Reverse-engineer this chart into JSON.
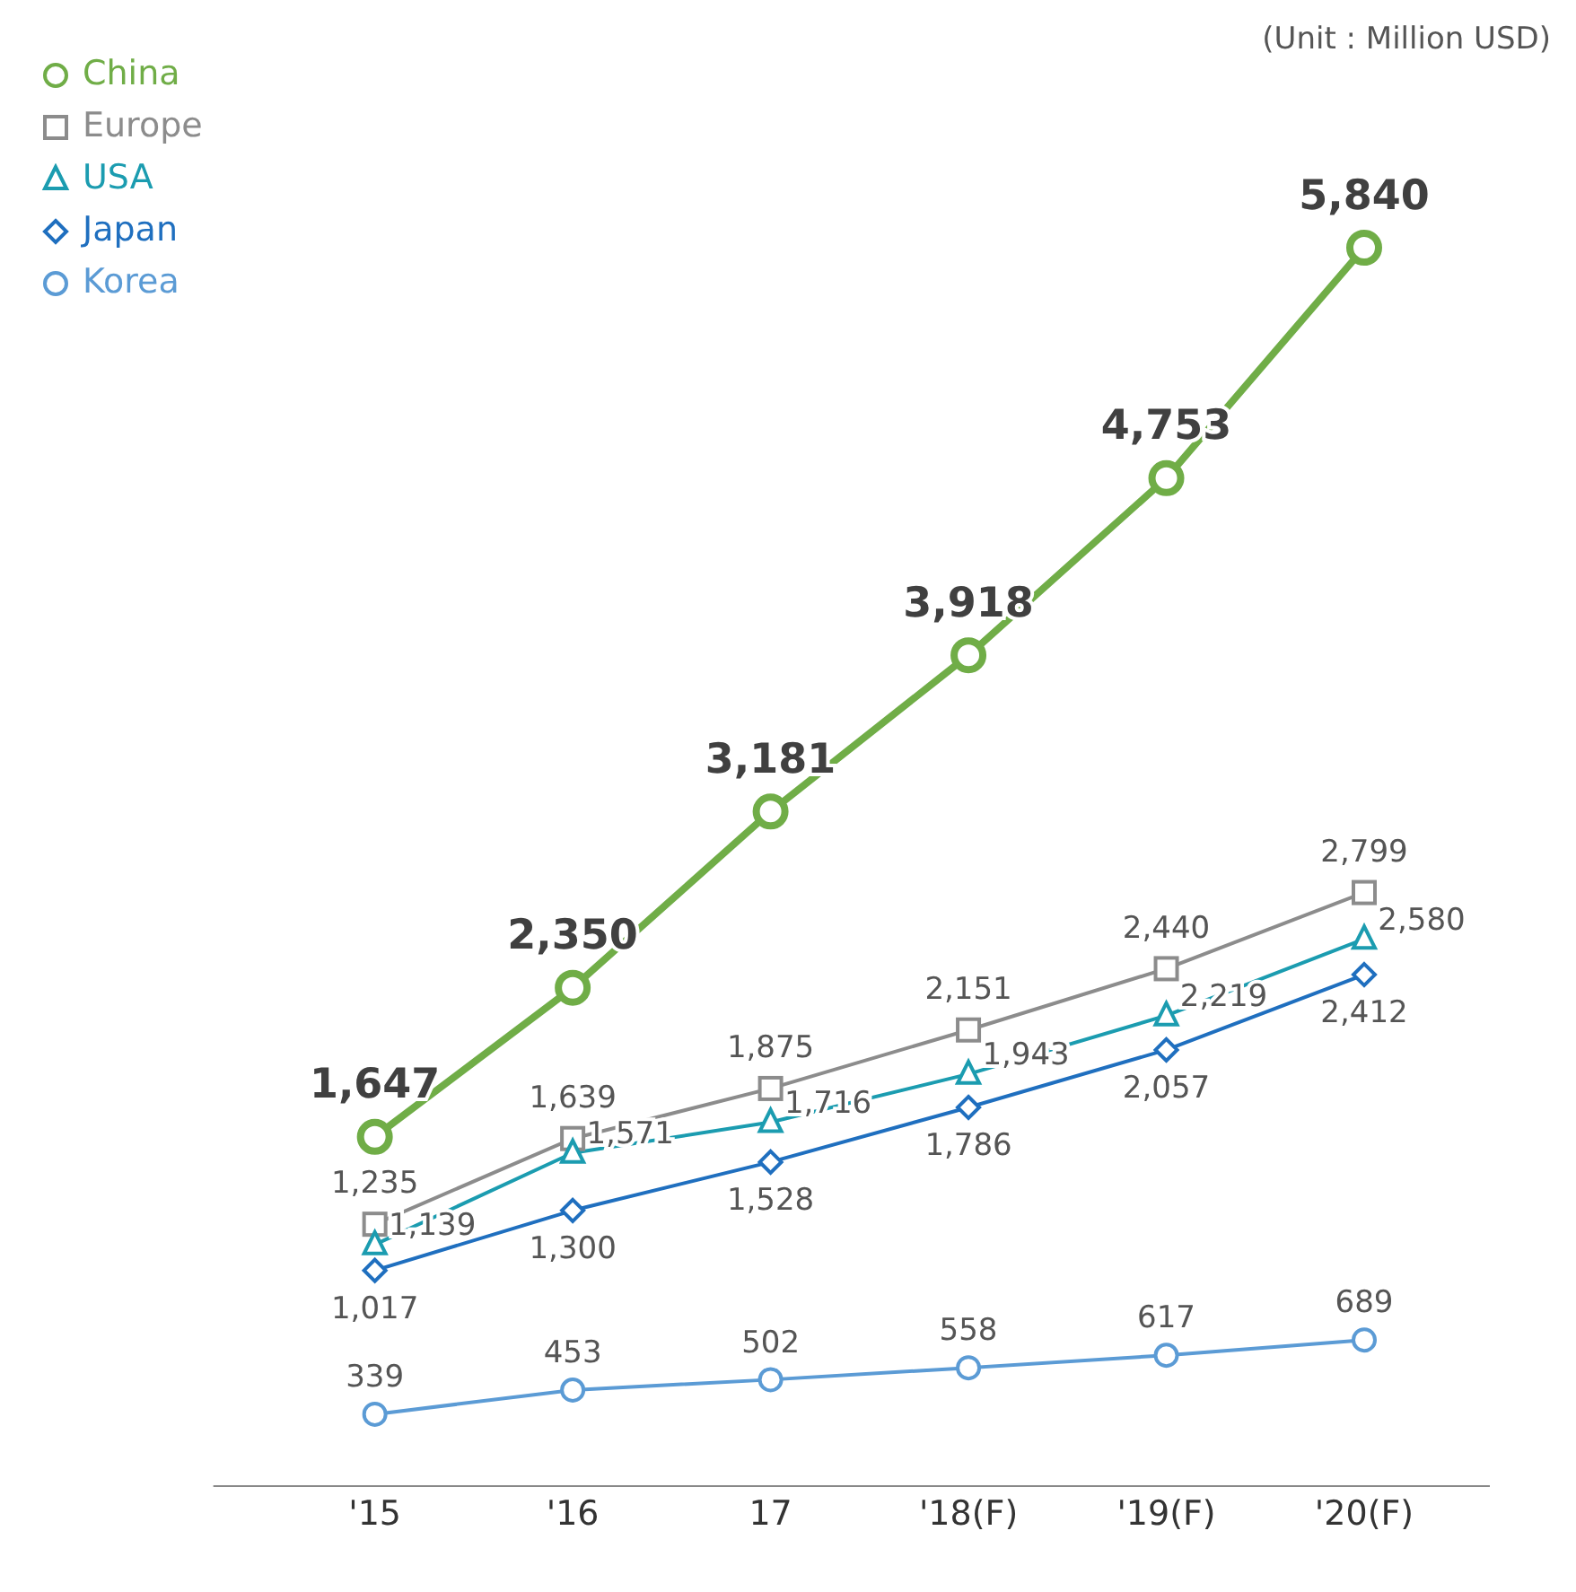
{
  "chart_data": {
    "type": "line",
    "categories": [
      "'15",
      "'16",
      "17",
      "'18(F)",
      "'19(F)",
      "'20(F)"
    ],
    "series": [
      {
        "name": "China",
        "color": "#70ad47",
        "marker": "circle",
        "values": [
          1647,
          2350,
          3181,
          3918,
          4753,
          5840
        ],
        "value_labels": [
          "1,647",
          "2,350",
          "3,181",
          "3,918",
          "4,753",
          "5,840"
        ]
      },
      {
        "name": "Europe",
        "color": "#8c8c8c",
        "marker": "square",
        "values": [
          1235,
          1639,
          1875,
          2151,
          2440,
          2799
        ],
        "value_labels": [
          "1,235",
          "1,639",
          "1,875",
          "2,151",
          "2,440",
          "2,799"
        ]
      },
      {
        "name": "USA",
        "color": "#1b9cb0",
        "marker": "triangle",
        "values": [
          1139,
          1571,
          1716,
          1943,
          2219,
          2580
        ],
        "value_labels": [
          "1,139",
          "1,571",
          "1,716",
          "1,943",
          "2,219",
          "2,580"
        ]
      },
      {
        "name": "Japan",
        "color": "#1f6fbf",
        "marker": "diamond",
        "values": [
          1017,
          1300,
          1528,
          1786,
          2057,
          2412
        ],
        "value_labels": [
          "1,017",
          "1,300",
          "1,528",
          "1,786",
          "2,057",
          "2,412"
        ]
      },
      {
        "name": "Korea",
        "color": "#5b9bd5",
        "marker": "circle",
        "values": [
          339,
          453,
          502,
          558,
          617,
          689
        ],
        "value_labels": [
          "339",
          "453",
          "502",
          "558",
          "617",
          "689"
        ]
      }
    ],
    "annotations": [
      "(Unit : Million USD)"
    ],
    "legend": "top left",
    "tick_labels": "x"
  }
}
